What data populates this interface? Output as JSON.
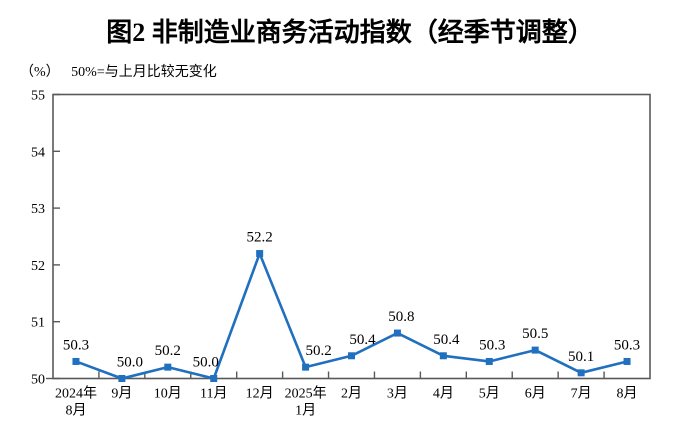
{
  "chart_data": {
    "type": "line",
    "title": "图2 非制造业商务活动指数（经季节调整）",
    "unit": "（%）",
    "annotation": "50%=与上月比较无变化",
    "categories": [
      [
        "2024年",
        "8月"
      ],
      [
        "9月"
      ],
      [
        "10月"
      ],
      [
        "11月"
      ],
      [
        "12月"
      ],
      [
        "2025年",
        "1月"
      ],
      [
        "2月"
      ],
      [
        "3月"
      ],
      [
        "4月"
      ],
      [
        "5月"
      ],
      [
        "6月"
      ],
      [
        "7月"
      ],
      [
        "8月"
      ]
    ],
    "values": [
      50.3,
      50.0,
      50.2,
      50.0,
      52.2,
      50.2,
      50.4,
      50.8,
      50.4,
      50.3,
      50.5,
      50.1,
      50.3
    ],
    "labels": [
      "50.3",
      "50.0",
      "50.2",
      "50.0",
      "52.2",
      "50.2",
      "50.4",
      "50.8",
      "50.4",
      "50.3",
      "50.5",
      "50.1",
      "50.3"
    ],
    "ylim": [
      50,
      55
    ],
    "ytick_step": 1,
    "yticks": [
      "50",
      "51",
      "52",
      "53",
      "54",
      "55"
    ],
    "grid": false,
    "legend": "none",
    "marker": "square",
    "line_color": "#2170C0",
    "axis_color": "#595959",
    "label_dx": [
      0,
      8,
      0,
      -8,
      0,
      13,
      11,
      4,
      3,
      3,
      0,
      0,
      0
    ]
  }
}
